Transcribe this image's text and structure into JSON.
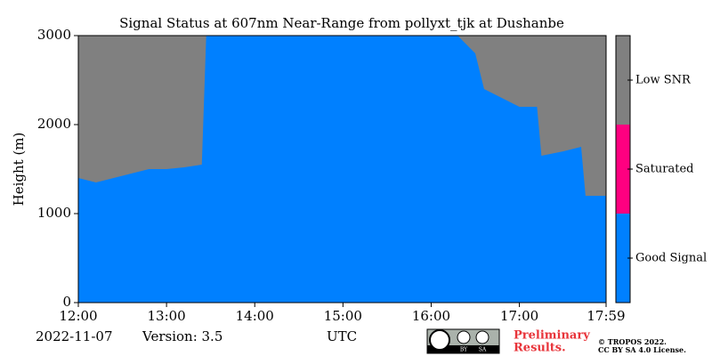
{
  "chart_data": {
    "type": "area",
    "title": "Signal Status at 607nm Near-Range from pollyxt_tjk at Dushanbe",
    "y_label": "Height (m)",
    "x_label": "UTC",
    "x": [
      12.0,
      12.2,
      12.4,
      12.6,
      12.8,
      13.0,
      13.2,
      13.4,
      13.45,
      14.0,
      15.0,
      16.0,
      16.3,
      16.5,
      16.6,
      16.8,
      17.0,
      17.2,
      17.25,
      17.5,
      17.7,
      17.75,
      17.983
    ],
    "values": [
      1400,
      1350,
      1400,
      1450,
      1500,
      1500,
      1520,
      1550,
      3000,
      3000,
      3000,
      3000,
      3000,
      2800,
      2400,
      2300,
      2200,
      2200,
      1650,
      1700,
      1750,
      1200,
      1200
    ],
    "xlim": [
      12,
      17.983
    ],
    "xticks": [
      {
        "value": 12,
        "label": "12:00"
      },
      {
        "value": 13,
        "label": "13:00"
      },
      {
        "value": 14,
        "label": "14:00"
      },
      {
        "value": 15,
        "label": "15:00"
      },
      {
        "value": 16,
        "label": "16:00"
      },
      {
        "value": 17,
        "label": "17:00"
      },
      {
        "value": 17.983,
        "label": "17:59"
      }
    ],
    "ylim": [
      0,
      3000
    ],
    "yticks": [
      0,
      1000,
      2000,
      3000
    ],
    "colorbar": {
      "categories": [
        "Good Signal",
        "Saturated",
        "Low SNR"
      ],
      "colors": [
        "#0080ff",
        "#ff0080",
        "#808080"
      ]
    }
  },
  "footer": {
    "date": "2022-11-07",
    "version": "Version: 3.5",
    "badge": [
      "BY",
      "SA"
    ],
    "notice": [
      "Preliminary",
      "Results."
    ],
    "license": [
      "© TROPOS 2022.",
      "CC BY SA 4.0 License."
    ]
  }
}
